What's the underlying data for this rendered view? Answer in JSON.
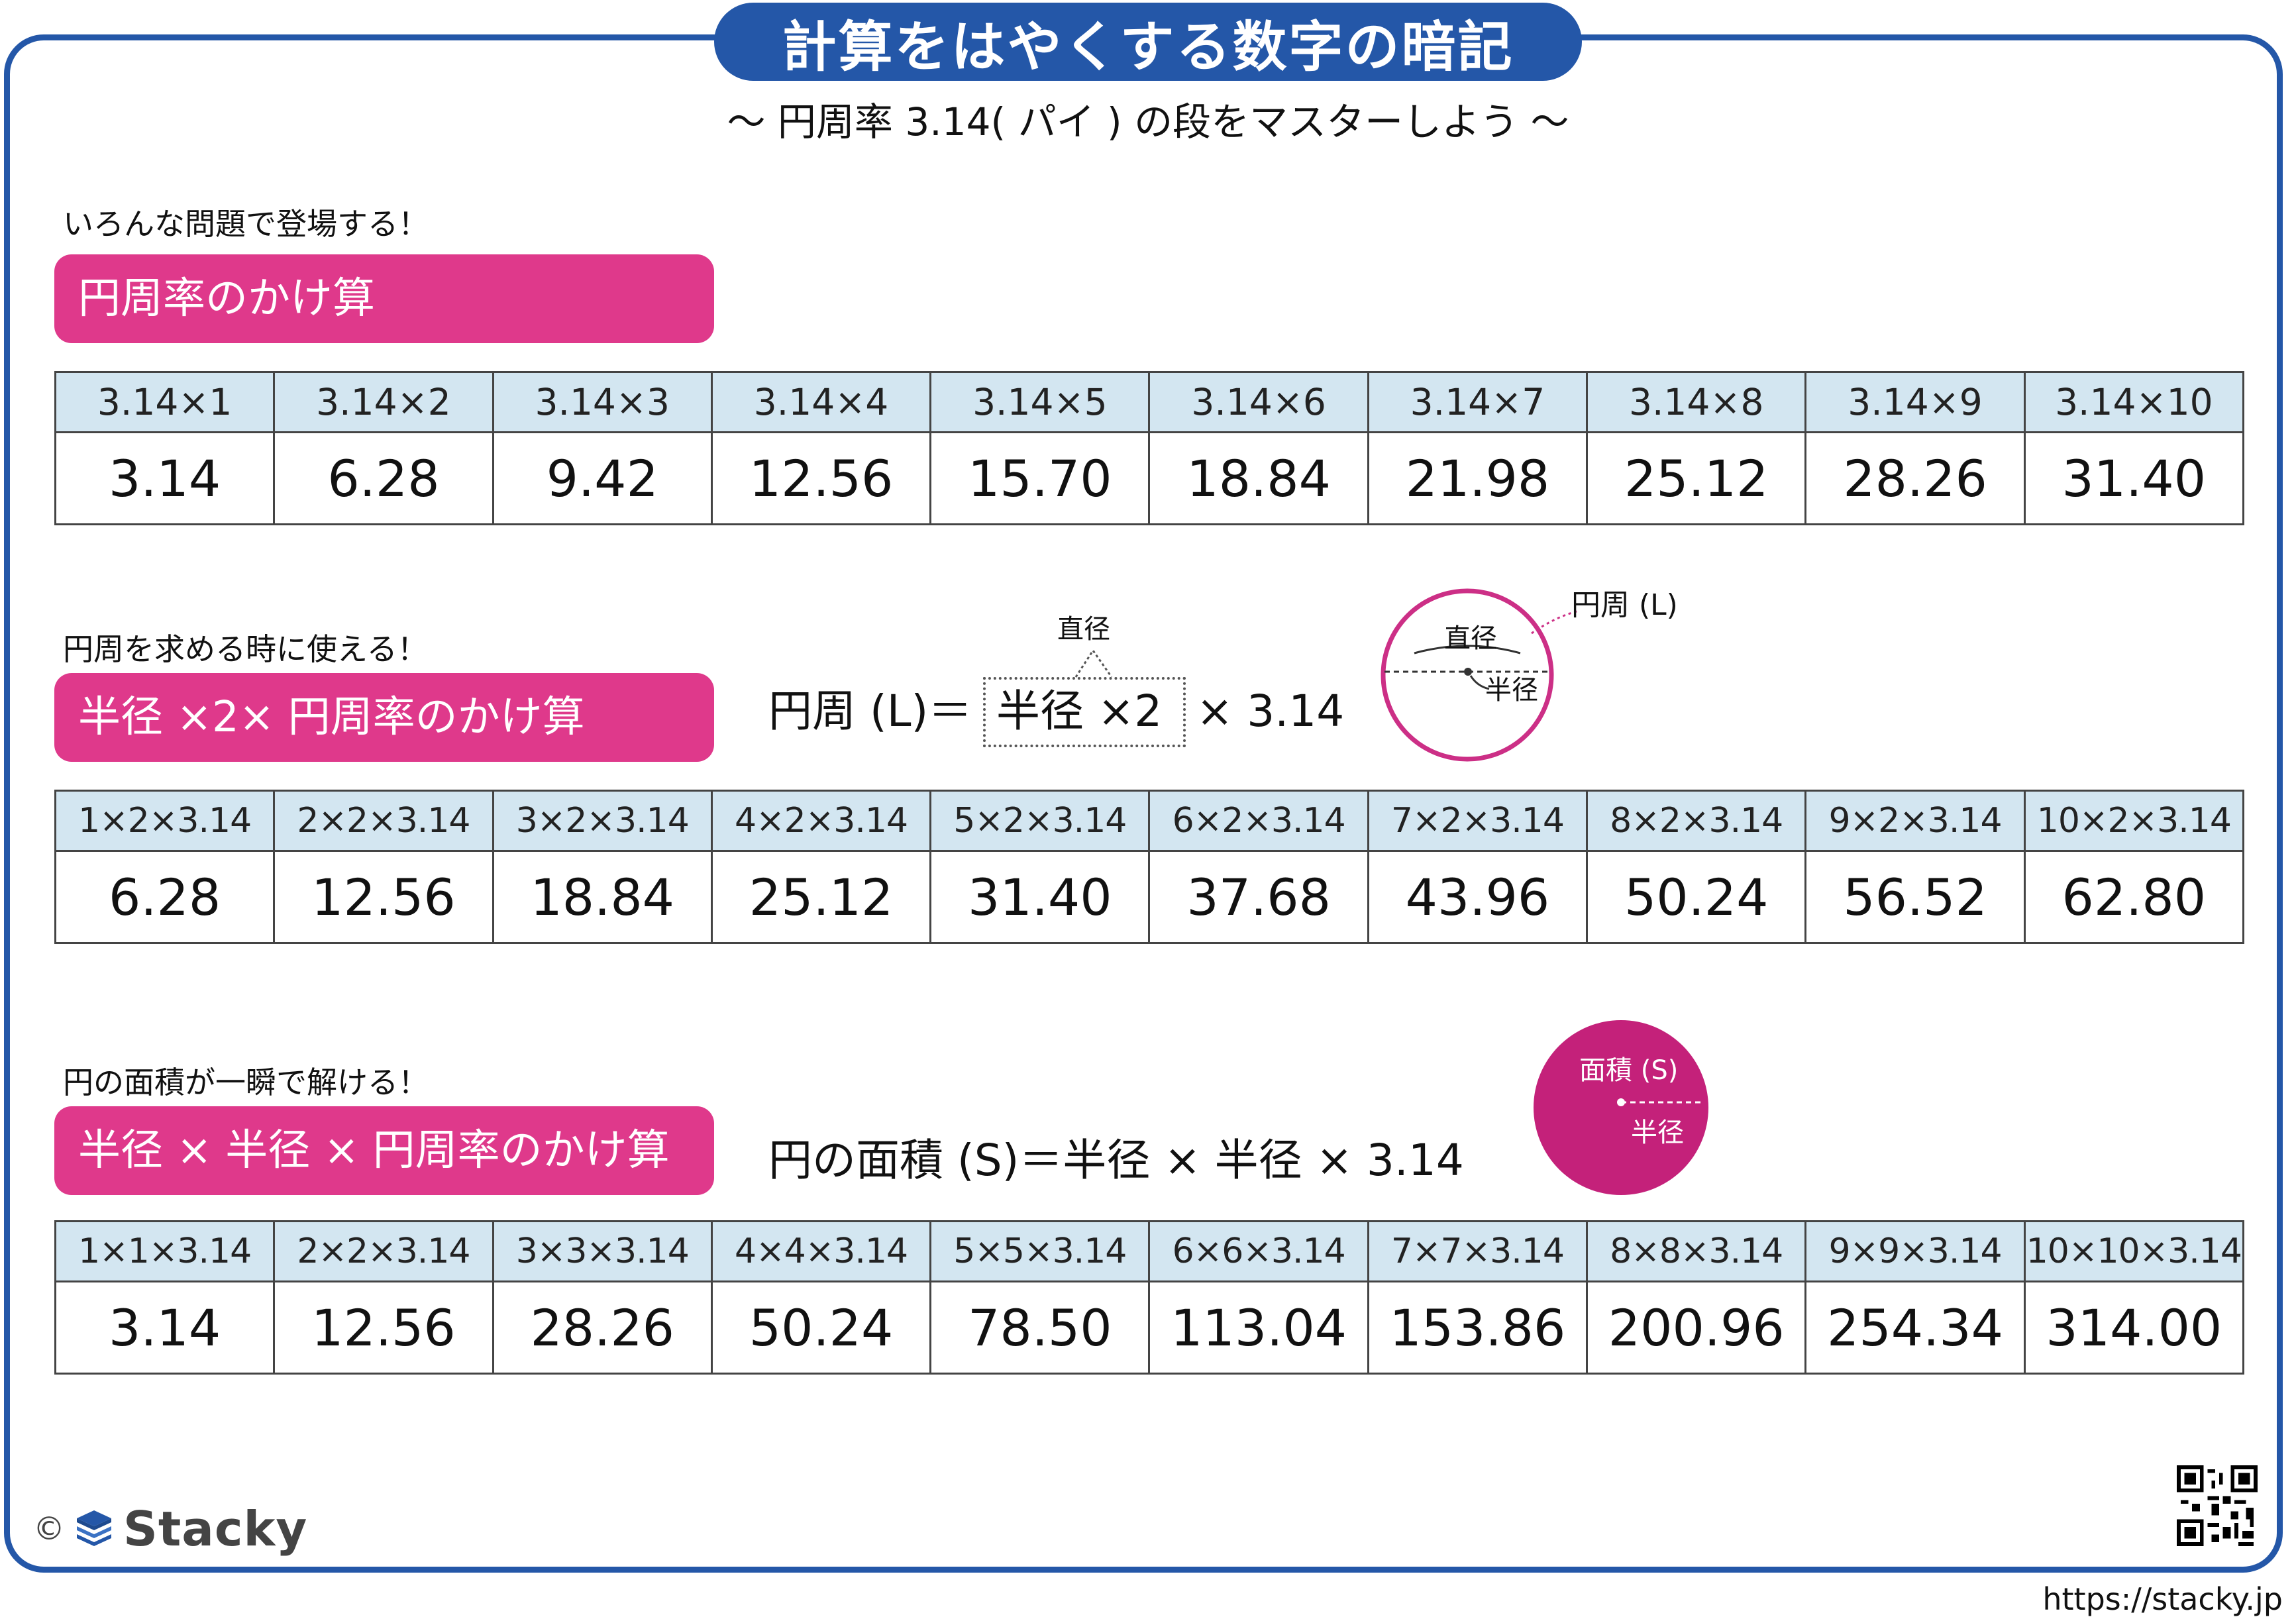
{
  "header": {
    "title": "計算をはやくする数字の暗記",
    "subtitle": "～ 円周率 3.14( パイ ) の段をマスターしよう ～"
  },
  "section1": {
    "lead": "いろんな問題で登場する！",
    "heading": "円周率のかけ算",
    "headers": [
      "3.14×1",
      "3.14×2",
      "3.14×3",
      "3.14×4",
      "3.14×5",
      "3.14×6",
      "3.14×7",
      "3.14×8",
      "3.14×9",
      "3.14×10"
    ],
    "values": [
      "3.14",
      "6.28",
      "9.42",
      "12.56",
      "15.70",
      "18.84",
      "21.98",
      "25.12",
      "28.26",
      "31.40"
    ]
  },
  "section2": {
    "lead": "円周を求める時に使える！",
    "heading": "半径 ×2× 円周率のかけ算",
    "formula_prefix": "円周 (L)＝",
    "formula_boxed": "半径 ×2",
    "formula_suffix": "× 3.14",
    "callout": "直径",
    "diagram": {
      "circumference_label": "円周 (L)",
      "diameter_label": "直径",
      "radius_label": "半径",
      "color": "#cc2f86"
    },
    "headers": [
      "1×2×3.14",
      "2×2×3.14",
      "3×2×3.14",
      "4×2×3.14",
      "5×2×3.14",
      "6×2×3.14",
      "7×2×3.14",
      "8×2×3.14",
      "9×2×3.14",
      "10×2×3.14"
    ],
    "values": [
      "6.28",
      "12.56",
      "18.84",
      "25.12",
      "31.40",
      "37.68",
      "43.96",
      "50.24",
      "56.52",
      "62.80"
    ]
  },
  "section3": {
    "lead": "円の面積が一瞬で解ける！",
    "heading": "半径 × 半径 × 円周率のかけ算",
    "formula": "円の面積 (S)＝半径 × 半径 × 3.14",
    "diagram": {
      "area_label": "面積 (S)",
      "radius_label": "半径",
      "color": "#cc2f86"
    },
    "headers": [
      "1×1×3.14",
      "2×2×3.14",
      "3×3×3.14",
      "4×4×3.14",
      "5×5×3.14",
      "6×6×3.14",
      "7×7×3.14",
      "8×8×3.14",
      "9×9×3.14",
      "10×10×3.14"
    ],
    "values": [
      "3.14",
      "12.56",
      "28.26",
      "50.24",
      "78.50",
      "113.04",
      "153.86",
      "200.96",
      "254.34",
      "314.00"
    ]
  },
  "footer": {
    "copyright": "©",
    "brand": "Stacky",
    "url": "https://stacky.jp",
    "qr_icon": "qr-code-icon"
  },
  "colors": {
    "frame": "#2457a8",
    "pill": "#df398b",
    "header_cell": "#d3e6f1"
  }
}
